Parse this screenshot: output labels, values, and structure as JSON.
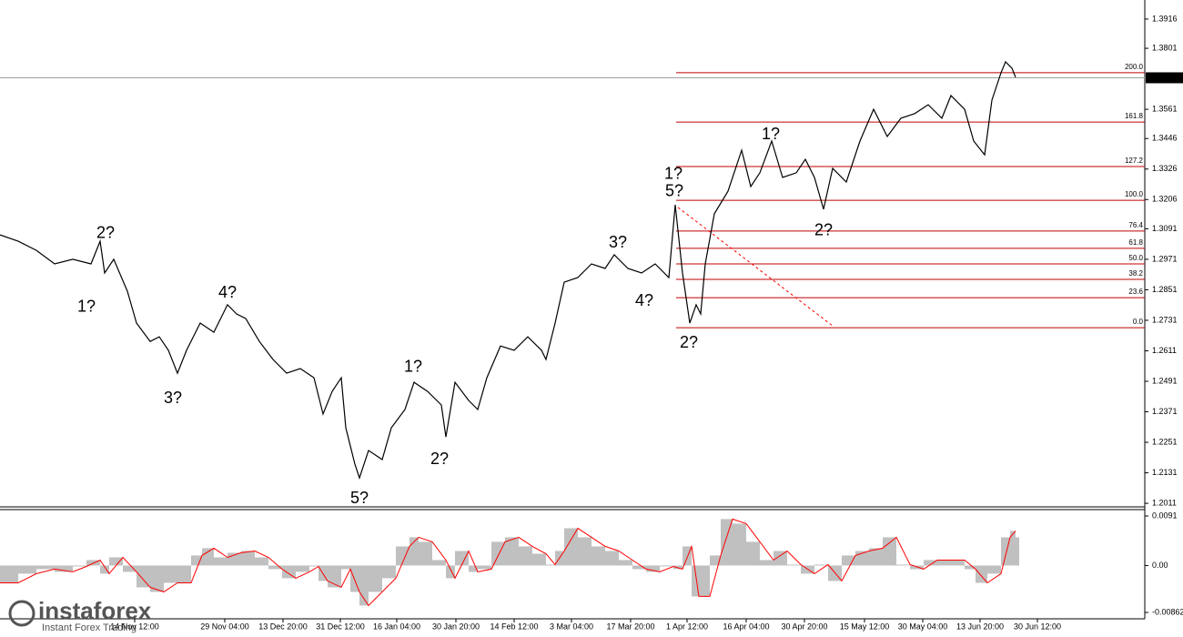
{
  "chart_data": [
    {
      "type": "line",
      "x": [
        0,
        20,
        40,
        60,
        80,
        100,
        110,
        115,
        125,
        140,
        150,
        165,
        175,
        185,
        195,
        205,
        220,
        235,
        250,
        260,
        270,
        285,
        300,
        315,
        330,
        345,
        355,
        365,
        375,
        380,
        390,
        395,
        405,
        420,
        430,
        445,
        455,
        470,
        485,
        490,
        500,
        515,
        525,
        535,
        550,
        565,
        580,
        595,
        600,
        610,
        620,
        635,
        650,
        665,
        675,
        690,
        705,
        720,
        735,
        742,
        750,
        758,
        765,
        770,
        775,
        785,
        800,
        815,
        825,
        835,
        848,
        860,
        875,
        885,
        895,
        905,
        915,
        930,
        945,
        960,
        975,
        990,
        1005,
        1020,
        1035,
        1045,
        1060,
        1070,
        1082,
        1090,
        1100,
        1105,
        1112,
        1116
      ],
      "values": [
        1.3067,
        1.3042,
        1.3006,
        1.2953,
        1.2971,
        1.2953,
        1.3042,
        1.2917,
        1.2971,
        1.2845,
        1.272,
        1.2648,
        1.2666,
        1.2613,
        1.2523,
        1.2613,
        1.272,
        1.2684,
        1.2792,
        1.2756,
        1.2738,
        1.2648,
        1.2577,
        1.2523,
        1.2541,
        1.2505,
        1.2362,
        1.2451,
        1.2505,
        1.2308,
        1.2165,
        1.2111,
        1.2219,
        1.2183,
        1.2308,
        1.238,
        1.2487,
        1.2451,
        1.2398,
        1.2272,
        1.2487,
        1.2416,
        1.238,
        1.2505,
        1.263,
        1.2613,
        1.2666,
        1.2613,
        1.2577,
        1.272,
        1.2881,
        1.2899,
        1.2953,
        1.2935,
        1.2989,
        1.2935,
        1.2917,
        1.2953,
        1.2899,
        1.3185,
        1.2917,
        1.272,
        1.2792,
        1.2756,
        1.2953,
        1.315,
        1.3239,
        1.34,
        1.3257,
        1.3311,
        1.3436,
        1.3293,
        1.3311,
        1.3364,
        1.3293,
        1.3168,
        1.3329,
        1.3275,
        1.3436,
        1.3561,
        1.3454,
        1.3526,
        1.3544,
        1.3579,
        1.3526,
        1.3615,
        1.3561,
        1.3436,
        1.3382,
        1.3597,
        1.3705,
        1.3748,
        1.3723,
        1.3687
      ],
      "color": "#000000",
      "xlim": [
        0,
        1258
      ],
      "ylim": [
        1.1997,
        1.3991
      ],
      "yticks": [
        1.3916,
        1.3801,
        1.3561,
        1.3446,
        1.3326,
        1.3206,
        1.3091,
        1.2971,
        1.2851,
        1.2731,
        1.2611,
        1.2491,
        1.2371,
        1.2251,
        1.2131,
        1.2011
      ],
      "current_price": 1.3685,
      "fib_start_x": 743,
      "fib_color": "#c00000",
      "fib_levels": [
        {
          "label": "200.0",
          "value": 1.3705
        },
        {
          "label": "161.8",
          "value": 1.3511
        },
        {
          "label": "127.2",
          "value": 1.3336
        },
        {
          "label": "100.0",
          "value": 1.3203
        },
        {
          "label": "76.4",
          "value": 1.3082
        },
        {
          "label": "61.8",
          "value": 1.3014
        },
        {
          "label": "50.0",
          "value": 1.2953
        },
        {
          "label": "38.2",
          "value": 1.2892
        },
        {
          "label": "23.6",
          "value": 1.282
        },
        {
          "label": "0.0",
          "value": 1.2702
        }
      ],
      "trendline": {
        "x": [
          745,
          915
        ],
        "values": [
          1.3175,
          1.2709
        ],
        "color": "#ff0000"
      },
      "annotations": [
        {
          "text": "2?",
          "color": "#ff0000",
          "x": 116,
          "y": 1.3071
        },
        {
          "text": "1?",
          "color": "#ff0000",
          "x": 95,
          "y": 1.2781
        },
        {
          "text": "3?",
          "color": "#ff0000",
          "x": 190,
          "y": 1.2423
        },
        {
          "text": "4?",
          "color": "#ff0000",
          "x": 250,
          "y": 1.2838
        },
        {
          "text": "5?",
          "color": "#ff0000",
          "x": 395,
          "y": 1.2029
        },
        {
          "text": "1?",
          "color": "#ff0000",
          "x": 454,
          "y": 1.2545
        },
        {
          "text": "2?",
          "color": "#ff0000",
          "x": 483,
          "y": 1.2183
        },
        {
          "text": "3?",
          "color": "#ff0000",
          "x": 679,
          "y": 1.3035
        },
        {
          "text": "4?",
          "color": "#ff0000",
          "x": 708,
          "y": 1.2806
        },
        {
          "text": "1?",
          "color": "#0000ff",
          "x": 740,
          "y": 1.3304
        },
        {
          "text": "5?",
          "color": "#ff0000",
          "x": 741,
          "y": 1.3236
        },
        {
          "text": "2?",
          "color": "#0000ff",
          "x": 757,
          "y": 1.2641
        },
        {
          "text": "1?",
          "color": "#ff0000",
          "x": 847,
          "y": 1.3461
        },
        {
          "text": "2?",
          "color": "#ff0000",
          "x": 905,
          "y": 1.3082
        }
      ]
    },
    {
      "type": "macd",
      "x": [
        0,
        20,
        40,
        60,
        80,
        95,
        110,
        120,
        135,
        150,
        165,
        180,
        195,
        210,
        222,
        235,
        250,
        265,
        280,
        295,
        310,
        325,
        340,
        350,
        360,
        375,
        385,
        395,
        405,
        420,
        435,
        450,
        460,
        475,
        490,
        500,
        515,
        525,
        540,
        555,
        570,
        585,
        600,
        610,
        620,
        635,
        650,
        665,
        680,
        695,
        710,
        725,
        740,
        750,
        760,
        768,
        780,
        792,
        805,
        820,
        835,
        850,
        865,
        880,
        895,
        910,
        925,
        940,
        955,
        970,
        985,
        1000,
        1015,
        1030,
        1045,
        1060,
        1072,
        1085,
        1100,
        1110,
        1116
      ],
      "values": [
        -0.00318,
        -0.0015,
        -0.00067,
        -0.00117,
        -0.00017,
        0.001,
        -0.0015,
        0.0015,
        -0.00117,
        -0.00401,
        -0.00485,
        -0.00318,
        -0.00318,
        0.00184,
        0.00318,
        0.0015,
        0.00234,
        0.00267,
        0.0015,
        -0.00067,
        -0.00234,
        -0.00117,
        -0.00017,
        -0.00284,
        -0.00401,
        -0.00067,
        -0.00485,
        -0.00736,
        -0.00485,
        -0.00234,
        0.00351,
        0.00518,
        0.00435,
        0.001,
        -0.00234,
        0.00267,
        -0.00117,
        -0.00067,
        0.00435,
        0.00518,
        0.00351,
        0.00217,
        0.00017,
        0.00267,
        0.00685,
        0.00518,
        0.00351,
        0.00267,
        0.001,
        -0.00067,
        -0.00117,
        -0.00017,
        -0.00067,
        0.00351,
        -0.00568,
        -0.00568,
        0.00184,
        0.00853,
        0.00769,
        0.00435,
        0.001,
        0.00267,
        0.00017,
        -0.0015,
        0.00017,
        -0.00284,
        0.00184,
        0.00267,
        0.00318,
        0.00518,
        0.00017,
        -0.00067,
        0.001,
        0.001,
        0.001,
        -0.00067,
        -0.00318,
        -0.0015,
        0.00518,
        0.00635,
        0.00518
      ],
      "color": "#c0c0c0",
      "signal": {
        "color": "#ff0000",
        "values": [
          -0.00318,
          -0.00318,
          -0.0015,
          -0.00067,
          -0.00117,
          -0.00017,
          0.001,
          -0.0015,
          0.0015,
          -0.00117,
          -0.00401,
          -0.00485,
          -0.00318,
          -0.00318,
          0.00184,
          0.00318,
          0.0015,
          0.00234,
          0.00267,
          0.0015,
          -0.00067,
          -0.00234,
          -0.00117,
          -0.00017,
          -0.00284,
          -0.00401,
          -0.00067,
          -0.00485,
          -0.00736,
          -0.00485,
          -0.00234,
          0.00351,
          0.00518,
          0.00435,
          0.001,
          -0.00234,
          0.00267,
          -0.00117,
          -0.00067,
          0.00435,
          0.00518,
          0.00351,
          0.00217,
          0.00017,
          0.00267,
          0.00685,
          0.00518,
          0.00351,
          0.00267,
          0.001,
          -0.00067,
          -0.00117,
          -0.00017,
          -0.00067,
          0.00351,
          -0.00568,
          -0.00568,
          0.00184,
          0.00853,
          0.00769,
          0.00435,
          0.001,
          0.00267,
          0.00017,
          -0.0015,
          0.00017,
          -0.00284,
          0.00184,
          0.00267,
          0.00318,
          0.00518,
          0.00017,
          -0.00067,
          0.001,
          0.001,
          0.001,
          -0.00067,
          -0.00318,
          -0.0015,
          0.00518,
          0.00635
        ]
      },
      "xlim": [
        0,
        1258
      ],
      "ylim": [
        -0.00979,
        0.01027
      ],
      "yticks": [
        0.0091,
        {
          "value": 0,
          "label": "0.00"
        },
        -0.00862
      ],
      "xticks": [
        {
          "value": 148,
          "label": "14 Nov 12:00"
        },
        {
          "value": 247,
          "label": "29 Nov 04:00"
        },
        {
          "value": 311,
          "label": "13 Dec 20:00"
        },
        {
          "value": 374,
          "label": "31 Dec 12:00"
        },
        {
          "value": 436,
          "label": "16 Jan 04:00"
        },
        {
          "value": 501,
          "label": "30 Jan 20:00"
        },
        {
          "value": 565,
          "label": "14 Feb 12:00"
        },
        {
          "value": 628,
          "label": "3 Mar 04:00"
        },
        {
          "value": 693,
          "label": "17 Mar 20:00"
        },
        {
          "value": 755,
          "label": "1 Apr 12:00"
        },
        {
          "value": 820,
          "label": "16 Apr 04:00"
        },
        {
          "value": 884,
          "label": "30 Apr 20:00"
        },
        {
          "value": 950,
          "label": "15 May 12:00"
        },
        {
          "value": 1014,
          "label": "30 May 04:00"
        },
        {
          "value": 1077,
          "label": "13 Jun 20:00"
        },
        {
          "value": 1140,
          "label": "30 Jun 12:00"
        }
      ]
    }
  ],
  "brand": {
    "name": "instaforex",
    "tagline": "Instant Forex Trading"
  }
}
